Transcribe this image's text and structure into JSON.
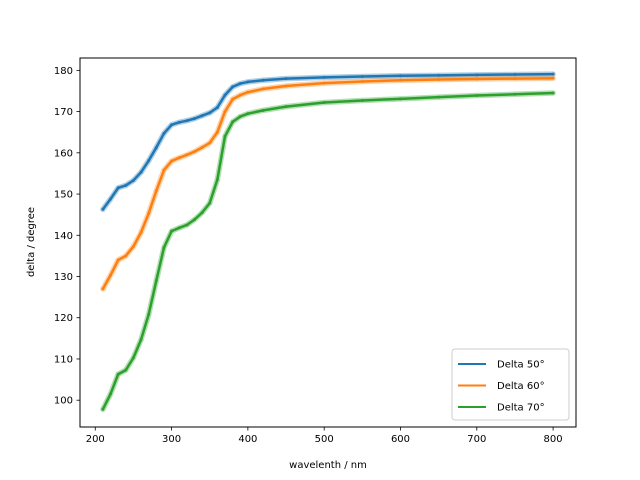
{
  "chart_data": {
    "type": "line",
    "title": "",
    "xlabel": "wavelenth / nm",
    "ylabel": "delta / degree",
    "xlim": [
      180,
      830
    ],
    "ylim": [
      93.5,
      183
    ],
    "xticks": [
      200,
      300,
      400,
      500,
      600,
      700,
      800
    ],
    "yticks": [
      100,
      110,
      120,
      130,
      140,
      150,
      160,
      170,
      180
    ],
    "grid": false,
    "legend_position": "lower-right",
    "series": [
      {
        "name": "Delta 50°",
        "color": "#1f77b4",
        "x": [
          210,
          220,
          230,
          240,
          250,
          260,
          270,
          280,
          290,
          300,
          310,
          320,
          330,
          340,
          350,
          360,
          370,
          380,
          390,
          400,
          420,
          450,
          500,
          550,
          600,
          650,
          700,
          750,
          800
        ],
        "y": [
          146.3,
          148.8,
          151.5,
          152.1,
          153.3,
          155.3,
          158.1,
          161.3,
          164.7,
          166.8,
          167.4,
          167.8,
          168.3,
          169.0,
          169.7,
          171.0,
          174.0,
          176.0,
          176.8,
          177.2,
          177.6,
          178.0,
          178.3,
          178.5,
          178.7,
          178.8,
          178.9,
          179.0,
          179.1
        ]
      },
      {
        "name": "Delta 60°",
        "color": "#ff7f0e",
        "x": [
          210,
          220,
          230,
          240,
          250,
          260,
          270,
          280,
          290,
          300,
          310,
          320,
          330,
          340,
          350,
          360,
          370,
          380,
          390,
          400,
          420,
          450,
          500,
          550,
          600,
          650,
          700,
          750,
          800
        ],
        "y": [
          127.0,
          130.3,
          134.0,
          135.0,
          137.3,
          140.7,
          145.3,
          150.8,
          155.8,
          158.0,
          158.8,
          159.5,
          160.3,
          161.3,
          162.4,
          165.0,
          170.0,
          173.0,
          174.0,
          174.7,
          175.5,
          176.2,
          176.9,
          177.3,
          177.6,
          177.8,
          177.9,
          178.0,
          178.1
        ]
      },
      {
        "name": "Delta 70°",
        "color": "#2ca02c",
        "x": [
          210,
          220,
          230,
          240,
          250,
          260,
          270,
          280,
          290,
          300,
          310,
          320,
          330,
          340,
          350,
          360,
          370,
          380,
          390,
          400,
          420,
          450,
          500,
          550,
          600,
          650,
          700,
          750,
          800
        ],
        "y": [
          97.8,
          101.5,
          106.3,
          107.3,
          110.3,
          114.7,
          120.8,
          129.0,
          137.0,
          141.0,
          141.8,
          142.5,
          143.8,
          145.5,
          147.8,
          153.5,
          164.0,
          167.5,
          168.8,
          169.5,
          170.3,
          171.2,
          172.2,
          172.7,
          173.1,
          173.5,
          173.9,
          174.2,
          174.5
        ]
      }
    ]
  }
}
